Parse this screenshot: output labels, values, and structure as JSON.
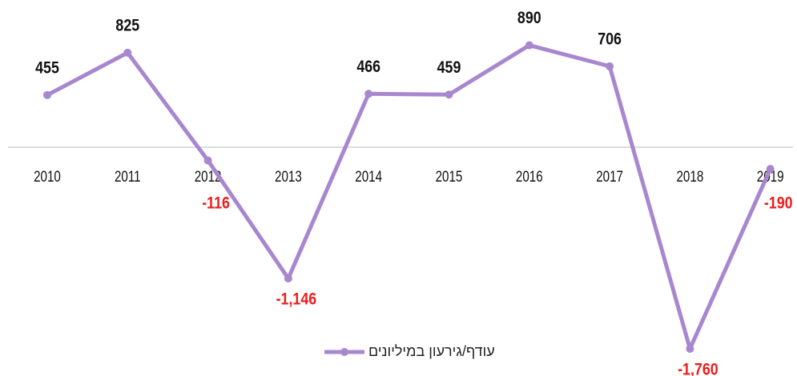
{
  "chart_data": {
    "type": "line",
    "categories": [
      "2010",
      "2011",
      "2012",
      "2013",
      "2014",
      "2015",
      "2016",
      "2017",
      "2018",
      "2019"
    ],
    "series": [
      {
        "name": "עודף/גירעון במיליונים",
        "color": "#a887cf",
        "values": [
          455,
          825,
          -116,
          -1146,
          466,
          459,
          890,
          706,
          -1760,
          -190
        ],
        "value_labels": [
          "455",
          "825",
          "-116",
          "-1,146",
          "466",
          "459",
          "890",
          "706",
          "-1,760",
          "-190"
        ]
      }
    ],
    "ylim": [
      -1900,
      1000
    ],
    "positive_label_color": "#111111",
    "negative_label_color": "#ee1c1c",
    "legend": "bottom"
  }
}
